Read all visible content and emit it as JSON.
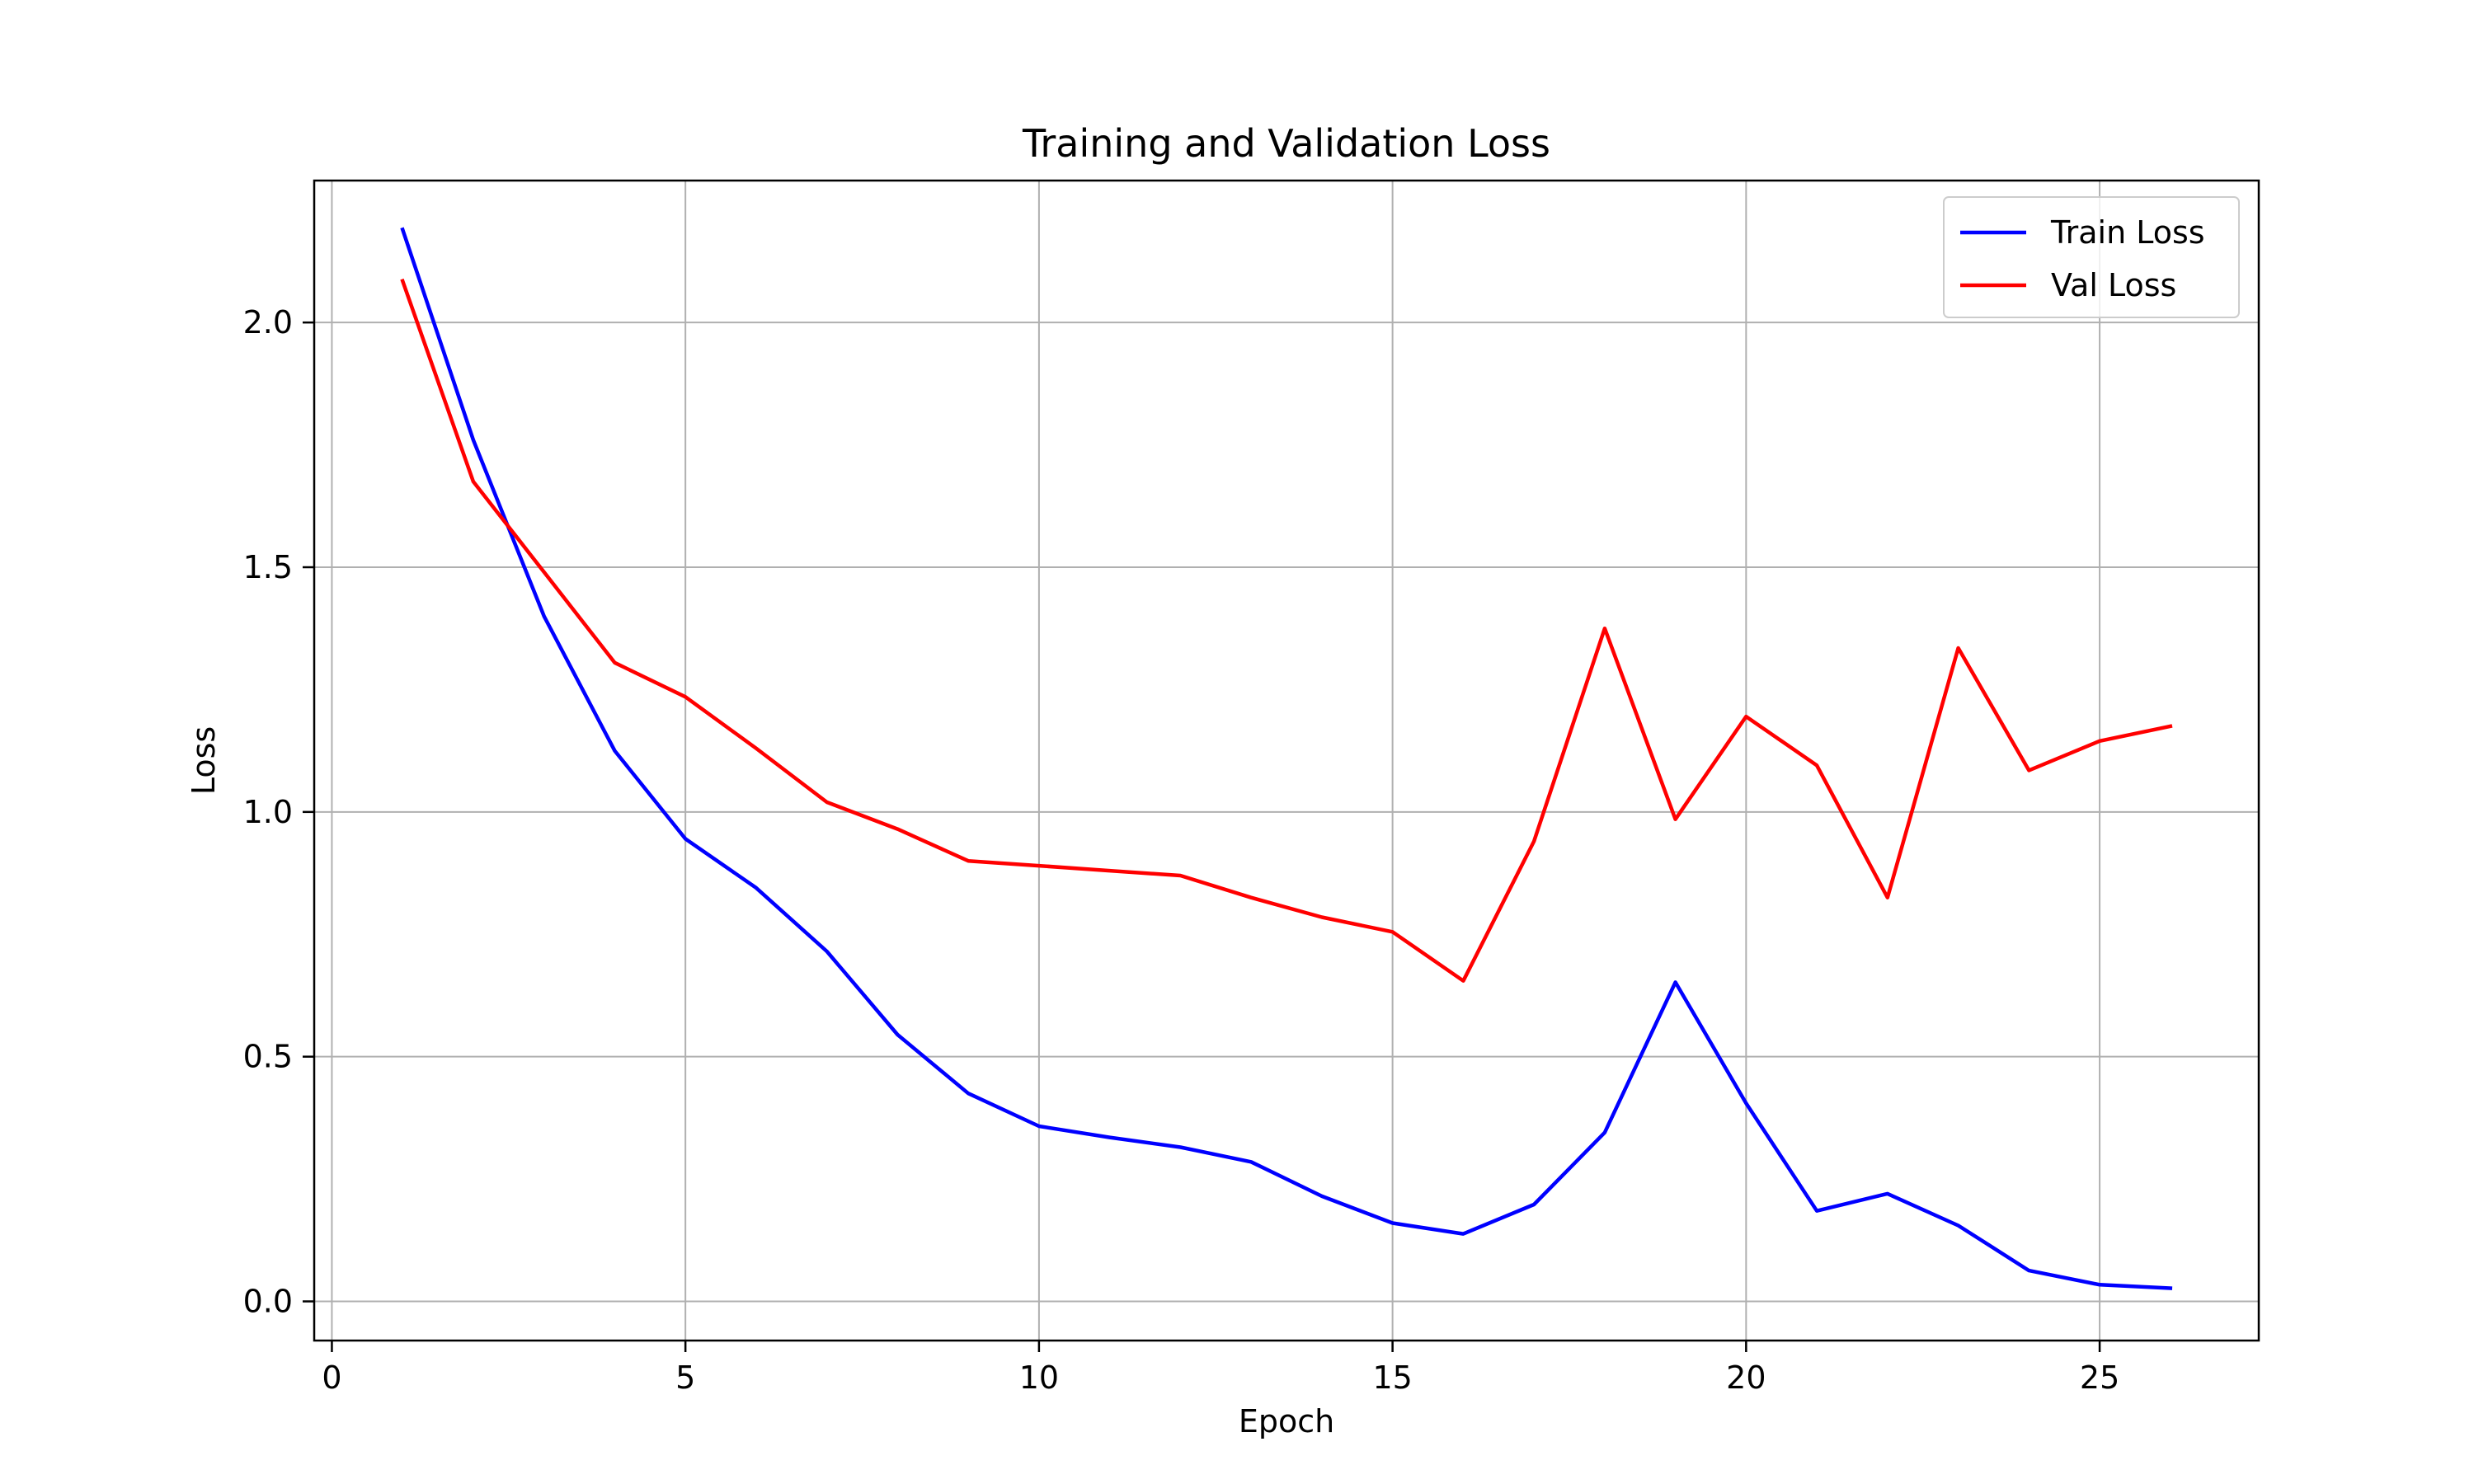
{
  "chart_data": {
    "type": "line",
    "title": "Training and Validation Loss",
    "xlabel": "Epoch",
    "ylabel": "Loss",
    "xlim": [
      -0.25,
      27.25
    ],
    "ylim": [
      -0.08,
      2.29
    ],
    "xticks": [
      0,
      5,
      10,
      15,
      20,
      25
    ],
    "xtick_labels": [
      "0",
      "5",
      "10",
      "15",
      "20",
      "25"
    ],
    "yticks": [
      0.0,
      0.5,
      1.0,
      1.5,
      2.0
    ],
    "ytick_labels": [
      "0.0",
      "0.5",
      "1.0",
      "1.5",
      "2.0"
    ],
    "grid": true,
    "legend": "top-right",
    "x": [
      1,
      2,
      3,
      4,
      5,
      6,
      7,
      8,
      9,
      10,
      11,
      12,
      13,
      14,
      15,
      16,
      17,
      18,
      19,
      20,
      21,
      22,
      23,
      24,
      25,
      26
    ],
    "series": [
      {
        "name": "Train Loss",
        "color": "#0000ff",
        "values": [
          2.19,
          1.76,
          1.4,
          1.125,
          0.945,
          0.845,
          0.715,
          0.545,
          0.425,
          0.358,
          0.335,
          0.315,
          0.285,
          0.215,
          0.16,
          0.138,
          0.198,
          0.345,
          0.652,
          0.405,
          0.185,
          0.22,
          0.155,
          0.063,
          0.034,
          0.027
        ]
      },
      {
        "name": "Val Loss",
        "color": "#ff0000",
        "values": [
          2.085,
          1.675,
          1.49,
          1.305,
          1.235,
          1.13,
          1.02,
          0.965,
          0.9,
          0.89,
          0.88,
          0.87,
          0.825,
          0.785,
          0.755,
          0.655,
          0.94,
          1.375,
          0.985,
          1.195,
          1.095,
          0.825,
          1.335,
          1.085,
          1.145,
          1.175
        ]
      }
    ]
  }
}
